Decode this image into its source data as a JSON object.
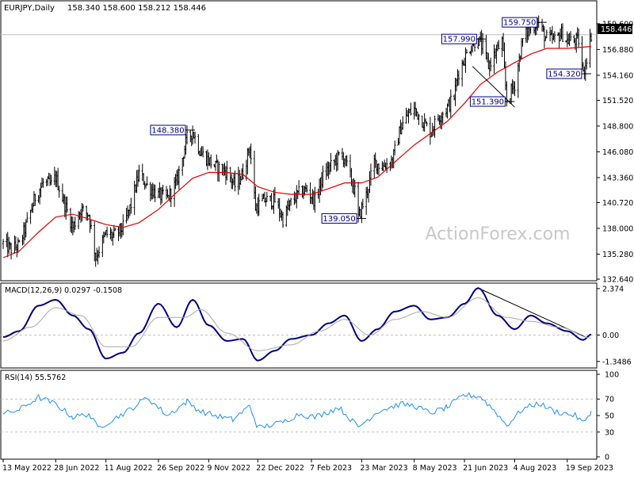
{
  "header": {
    "symbol": "EURJPY,Daily",
    "ohlc": "158.340 158.600 158.212 158.446",
    "watermark": "ActionForex.com"
  },
  "colors": {
    "candle": "#000000",
    "ma": "#e00000",
    "macd": "#000080",
    "signal": "#a8a8a8",
    "rsi": "#1e90ff",
    "grid": "#c0c0c0",
    "box_border": "#000080",
    "box_text": "#000080",
    "axis_text": "#000000",
    "watermark": "#c8c8c8"
  },
  "chart_data": [
    {
      "type": "candlestick",
      "panel": "price",
      "symbol": "EURJPY",
      "timeframe": "Daily",
      "ylim": [
        132.64,
        160.6
      ],
      "yticks": [
        "159.600",
        "156.880",
        "154.160",
        "151.520",
        "148.800",
        "146.080",
        "143.360",
        "140.720",
        "138.000",
        "135.280",
        "132.640"
      ],
      "current_price": "158.446",
      "overlay": "moving average (red)",
      "x_dates": [
        "13 May 2022",
        "28 Jun 2022",
        "11 Aug 2022",
        "26 Sep 2022",
        "9 Nov 2022",
        "22 Dec 2022",
        "7 Feb 2023",
        "23 Mar 2023",
        "8 May 2023",
        "21 Jun 2023",
        "4 Aug 2023",
        "19 Sep 2023"
      ],
      "close_path": [
        {
          "x": "2022-05-13",
          "y": 136.4
        },
        {
          "x": "2022-05-20",
          "y": 135.8
        },
        {
          "x": "2022-05-27",
          "y": 136.2
        },
        {
          "x": "2022-06-03",
          "y": 138.6
        },
        {
          "x": "2022-06-10",
          "y": 141.3
        },
        {
          "x": "2022-06-17",
          "y": 142.8
        },
        {
          "x": "2022-06-24",
          "y": 142.6
        },
        {
          "x": "2022-06-28",
          "y": 143.4
        },
        {
          "x": "2022-07-06",
          "y": 140.5
        },
        {
          "x": "2022-07-13",
          "y": 138.1
        },
        {
          "x": "2022-07-20",
          "y": 140.0
        },
        {
          "x": "2022-07-27",
          "y": 139.5
        },
        {
          "x": "2022-08-02",
          "y": 135.0
        },
        {
          "x": "2022-08-11",
          "y": 137.4
        },
        {
          "x": "2022-08-18",
          "y": 137.2
        },
        {
          "x": "2022-08-26",
          "y": 138.1
        },
        {
          "x": "2022-09-02",
          "y": 140.5
        },
        {
          "x": "2022-09-09",
          "y": 143.8
        },
        {
          "x": "2022-09-16",
          "y": 142.5
        },
        {
          "x": "2022-09-26",
          "y": 141.5
        },
        {
          "x": "2022-10-04",
          "y": 141.2
        },
        {
          "x": "2022-10-12",
          "y": 142.9
        },
        {
          "x": "2022-10-21",
          "y": 147.5
        },
        {
          "x": "2022-10-26",
          "y": 148.2
        },
        {
          "x": "2022-11-02",
          "y": 146.0
        },
        {
          "x": "2022-11-09",
          "y": 145.2
        },
        {
          "x": "2022-11-15",
          "y": 144.5
        },
        {
          "x": "2022-11-25",
          "y": 144.0
        },
        {
          "x": "2022-12-02",
          "y": 142.5
        },
        {
          "x": "2022-12-09",
          "y": 143.8
        },
        {
          "x": "2022-12-15",
          "y": 146.7
        },
        {
          "x": "2022-12-20",
          "y": 140.2
        },
        {
          "x": "2022-12-28",
          "y": 141.0
        },
        {
          "x": "2023-01-06",
          "y": 140.9
        },
        {
          "x": "2023-01-13",
          "y": 139.0
        },
        {
          "x": "2023-01-20",
          "y": 140.7
        },
        {
          "x": "2023-01-27",
          "y": 141.7
        },
        {
          "x": "2023-02-03",
          "y": 142.1
        },
        {
          "x": "2023-02-10",
          "y": 140.9
        },
        {
          "x": "2023-02-17",
          "y": 143.5
        },
        {
          "x": "2023-02-24",
          "y": 144.6
        },
        {
          "x": "2023-03-03",
          "y": 145.6
        },
        {
          "x": "2023-03-08",
          "y": 145.4
        },
        {
          "x": "2023-03-17",
          "y": 141.9
        },
        {
          "x": "2023-03-20",
          "y": 139.1
        },
        {
          "x": "2023-03-27",
          "y": 141.5
        },
        {
          "x": "2023-04-03",
          "y": 145.0
        },
        {
          "x": "2023-04-10",
          "y": 144.5
        },
        {
          "x": "2023-04-19",
          "y": 145.2
        },
        {
          "x": "2023-04-26",
          "y": 148.6
        },
        {
          "x": "2023-05-03",
          "y": 150.1
        },
        {
          "x": "2023-05-08",
          "y": 150.6
        },
        {
          "x": "2023-05-15",
          "y": 149.4
        },
        {
          "x": "2023-05-22",
          "y": 148.2
        },
        {
          "x": "2023-05-29",
          "y": 149.7
        },
        {
          "x": "2023-06-05",
          "y": 150.6
        },
        {
          "x": "2023-06-12",
          "y": 151.9
        },
        {
          "x": "2023-06-15",
          "y": 154.2
        },
        {
          "x": "2023-06-21",
          "y": 155.9
        },
        {
          "x": "2023-06-28",
          "y": 157.6
        },
        {
          "x": "2023-07-03",
          "y": 157.9
        },
        {
          "x": "2023-07-07",
          "y": 157.1
        },
        {
          "x": "2023-07-12",
          "y": 155.2
        },
        {
          "x": "2023-07-18",
          "y": 156.5
        },
        {
          "x": "2023-07-24",
          "y": 157.7
        },
        {
          "x": "2023-07-28",
          "y": 151.5
        },
        {
          "x": "2023-08-04",
          "y": 153.2
        },
        {
          "x": "2023-08-11",
          "y": 157.9
        },
        {
          "x": "2023-08-18",
          "y": 159.3
        },
        {
          "x": "2023-08-25",
          "y": 159.7
        },
        {
          "x": "2023-08-31",
          "y": 158.1
        },
        {
          "x": "2023-09-08",
          "y": 157.9
        },
        {
          "x": "2023-09-14",
          "y": 158.6
        },
        {
          "x": "2023-09-19",
          "y": 157.8
        },
        {
          "x": "2023-09-26",
          "y": 157.8
        },
        {
          "x": "2023-09-29",
          "y": 157.8
        },
        {
          "x": "2023-10-03",
          "y": 154.3
        },
        {
          "x": "2023-10-10",
          "y": 158.446
        }
      ],
      "ma_path": [
        {
          "x": "2022-05-13",
          "y": 134.9
        },
        {
          "x": "2022-05-27",
          "y": 135.6
        },
        {
          "x": "2022-06-13",
          "y": 137.6
        },
        {
          "x": "2022-06-28",
          "y": 139.2
        },
        {
          "x": "2022-07-13",
          "y": 139.5
        },
        {
          "x": "2022-07-27",
          "y": 139.0
        },
        {
          "x": "2022-08-11",
          "y": 138.4
        },
        {
          "x": "2022-08-26",
          "y": 138.1
        },
        {
          "x": "2022-09-09",
          "y": 138.6
        },
        {
          "x": "2022-09-26",
          "y": 140.0
        },
        {
          "x": "2022-10-12",
          "y": 141.8
        },
        {
          "x": "2022-10-26",
          "y": 143.3
        },
        {
          "x": "2022-11-09",
          "y": 143.9
        },
        {
          "x": "2022-11-25",
          "y": 143.9
        },
        {
          "x": "2022-12-09",
          "y": 143.7
        },
        {
          "x": "2022-12-22",
          "y": 142.4
        },
        {
          "x": "2023-01-06",
          "y": 141.8
        },
        {
          "x": "2023-01-20",
          "y": 141.6
        },
        {
          "x": "2023-02-07",
          "y": 141.6
        },
        {
          "x": "2023-02-22",
          "y": 142.2
        },
        {
          "x": "2023-03-08",
          "y": 142.8
        },
        {
          "x": "2023-03-23",
          "y": 142.8
        },
        {
          "x": "2023-04-06",
          "y": 143.4
        },
        {
          "x": "2023-04-21",
          "y": 145.0
        },
        {
          "x": "2023-05-08",
          "y": 146.8
        },
        {
          "x": "2023-05-22",
          "y": 148.0
        },
        {
          "x": "2023-06-06",
          "y": 149.3
        },
        {
          "x": "2023-06-21",
          "y": 151.2
        },
        {
          "x": "2023-07-05",
          "y": 153.2
        },
        {
          "x": "2023-07-20",
          "y": 154.5
        },
        {
          "x": "2023-08-04",
          "y": 155.5
        },
        {
          "x": "2023-08-18",
          "y": 156.4
        },
        {
          "x": "2023-09-01",
          "y": 157.0
        },
        {
          "x": "2023-09-19",
          "y": 157.0
        },
        {
          "x": "2023-10-10",
          "y": 157.2
        }
      ],
      "annotations": [
        {
          "label": "148.380",
          "date": "2022-10-21",
          "value": 148.38,
          "anchor": "left"
        },
        {
          "label": "139.050",
          "date": "2023-03-20",
          "value": 139.05,
          "anchor": "left"
        },
        {
          "label": "157.990",
          "date": "2023-07-03",
          "value": 157.99,
          "anchor": "left"
        },
        {
          "label": "151.390",
          "date": "2023-07-28",
          "value": 151.39,
          "anchor": "left"
        },
        {
          "label": "159.750",
          "date": "2023-08-25",
          "value": 159.75,
          "anchor": "left"
        },
        {
          "label": "154.320",
          "date": "2023-10-03",
          "value": 154.32,
          "anchor": "left"
        }
      ],
      "trendlines": [
        {
          "from": {
            "x": "2023-06-28",
            "y": 155.1
          },
          "to": {
            "x": "2023-08-04",
            "y": 150.8
          }
        }
      ]
    },
    {
      "type": "line",
      "panel": "macd",
      "title": "MACD(12,26,9) 0.0297 -0.1508",
      "ylim": [
        -1.6,
        2.45
      ],
      "yticks": [
        "2.374",
        "0.00",
        "-1.3486"
      ],
      "current_macd": "0.0297",
      "current_signal": "-0.1508",
      "series": [
        {
          "key": "macd",
          "values": [
            {
              "x": "2022-05-13",
              "y": -0.1
            },
            {
              "x": "2022-05-27",
              "y": 0.2
            },
            {
              "x": "2022-06-13",
              "y": 1.5
            },
            {
              "x": "2022-06-28",
              "y": 1.8
            },
            {
              "x": "2022-07-13",
              "y": 1.0
            },
            {
              "x": "2022-07-27",
              "y": 0.3
            },
            {
              "x": "2022-08-11",
              "y": -1.2
            },
            {
              "x": "2022-08-26",
              "y": -0.9
            },
            {
              "x": "2022-09-09",
              "y": 0.1
            },
            {
              "x": "2022-09-26",
              "y": 1.6
            },
            {
              "x": "2022-10-12",
              "y": 0.4
            },
            {
              "x": "2022-10-26",
              "y": 1.8
            },
            {
              "x": "2022-11-09",
              "y": 0.5
            },
            {
              "x": "2022-11-25",
              "y": -0.3
            },
            {
              "x": "2022-12-09",
              "y": -0.2
            },
            {
              "x": "2022-12-22",
              "y": -1.3
            },
            {
              "x": "2023-01-06",
              "y": -0.8
            },
            {
              "x": "2023-01-20",
              "y": -0.2
            },
            {
              "x": "2023-02-07",
              "y": 0.0
            },
            {
              "x": "2023-02-22",
              "y": 0.6
            },
            {
              "x": "2023-03-08",
              "y": 1.0
            },
            {
              "x": "2023-03-23",
              "y": -0.3
            },
            {
              "x": "2023-04-06",
              "y": 0.3
            },
            {
              "x": "2023-04-21",
              "y": 1.2
            },
            {
              "x": "2023-05-08",
              "y": 1.5
            },
            {
              "x": "2023-05-22",
              "y": 0.8
            },
            {
              "x": "2023-06-06",
              "y": 0.9
            },
            {
              "x": "2023-06-21",
              "y": 1.6
            },
            {
              "x": "2023-07-03",
              "y": 2.4
            },
            {
              "x": "2023-07-20",
              "y": 1.0
            },
            {
              "x": "2023-08-04",
              "y": 0.3
            },
            {
              "x": "2023-08-18",
              "y": 1.0
            },
            {
              "x": "2023-09-01",
              "y": 0.6
            },
            {
              "x": "2023-09-19",
              "y": 0.2
            },
            {
              "x": "2023-10-03",
              "y": -0.25
            },
            {
              "x": "2023-10-10",
              "y": 0.0297
            }
          ]
        },
        {
          "key": "signal",
          "values": [
            {
              "x": "2022-05-13",
              "y": -0.3
            },
            {
              "x": "2022-06-06",
              "y": 0.4
            },
            {
              "x": "2022-06-28",
              "y": 1.4
            },
            {
              "x": "2022-07-20",
              "y": 1.0
            },
            {
              "x": "2022-08-11",
              "y": -0.6
            },
            {
              "x": "2022-09-02",
              "y": -0.6
            },
            {
              "x": "2022-09-26",
              "y": 0.9
            },
            {
              "x": "2022-10-19",
              "y": 0.9
            },
            {
              "x": "2022-11-02",
              "y": 1.3
            },
            {
              "x": "2022-11-25",
              "y": 0.1
            },
            {
              "x": "2022-12-22",
              "y": -0.8
            },
            {
              "x": "2023-01-20",
              "y": -0.5
            },
            {
              "x": "2023-02-14",
              "y": 0.2
            },
            {
              "x": "2023-03-08",
              "y": 0.8
            },
            {
              "x": "2023-03-30",
              "y": 0.0
            },
            {
              "x": "2023-04-21",
              "y": 0.8
            },
            {
              "x": "2023-05-15",
              "y": 1.2
            },
            {
              "x": "2023-06-06",
              "y": 0.9
            },
            {
              "x": "2023-07-03",
              "y": 1.9
            },
            {
              "x": "2023-07-28",
              "y": 0.9
            },
            {
              "x": "2023-08-18",
              "y": 0.7
            },
            {
              "x": "2023-09-12",
              "y": 0.4
            },
            {
              "x": "2023-10-10",
              "y": -0.1508
            }
          ]
        }
      ],
      "trendlines": [
        {
          "from": {
            "x": "2023-07-03",
            "y": 2.4
          },
          "to": {
            "x": "2023-10-05",
            "y": -0.1
          }
        }
      ]
    },
    {
      "type": "line",
      "panel": "rsi",
      "title": "RSI(14) 55.5762",
      "ylim": [
        0,
        100
      ],
      "yticks": [
        "100",
        "70",
        "50",
        "30",
        "0"
      ],
      "levels": [
        70,
        30
      ],
      "current": "55.5762",
      "series": [
        {
          "key": "rsi",
          "values": [
            {
              "x": "2022-05-13",
              "y": 52
            },
            {
              "x": "2022-05-27",
              "y": 57
            },
            {
              "x": "2022-06-13",
              "y": 72
            },
            {
              "x": "2022-06-28",
              "y": 64
            },
            {
              "x": "2022-07-13",
              "y": 48
            },
            {
              "x": "2022-07-27",
              "y": 52
            },
            {
              "x": "2022-08-04",
              "y": 35
            },
            {
              "x": "2022-08-18",
              "y": 46
            },
            {
              "x": "2022-09-02",
              "y": 58
            },
            {
              "x": "2022-09-16",
              "y": 72
            },
            {
              "x": "2022-10-04",
              "y": 50
            },
            {
              "x": "2022-10-21",
              "y": 67
            },
            {
              "x": "2022-11-02",
              "y": 55
            },
            {
              "x": "2022-11-15",
              "y": 50
            },
            {
              "x": "2022-11-30",
              "y": 45
            },
            {
              "x": "2022-12-15",
              "y": 62
            },
            {
              "x": "2022-12-22",
              "y": 35
            },
            {
              "x": "2023-01-13",
              "y": 42
            },
            {
              "x": "2023-01-27",
              "y": 52
            },
            {
              "x": "2023-02-10",
              "y": 48
            },
            {
              "x": "2023-03-03",
              "y": 60
            },
            {
              "x": "2023-03-20",
              "y": 36
            },
            {
              "x": "2023-04-06",
              "y": 55
            },
            {
              "x": "2023-04-26",
              "y": 64
            },
            {
              "x": "2023-05-08",
              "y": 62
            },
            {
              "x": "2023-05-22",
              "y": 53
            },
            {
              "x": "2023-06-06",
              "y": 60
            },
            {
              "x": "2023-06-21",
              "y": 75
            },
            {
              "x": "2023-07-05",
              "y": 73
            },
            {
              "x": "2023-07-18",
              "y": 55
            },
            {
              "x": "2023-07-28",
              "y": 38
            },
            {
              "x": "2023-08-11",
              "y": 58
            },
            {
              "x": "2023-08-25",
              "y": 65
            },
            {
              "x": "2023-09-08",
              "y": 55
            },
            {
              "x": "2023-09-26",
              "y": 50
            },
            {
              "x": "2023-10-03",
              "y": 41
            },
            {
              "x": "2023-10-10",
              "y": 55.5762
            }
          ]
        }
      ]
    }
  ]
}
